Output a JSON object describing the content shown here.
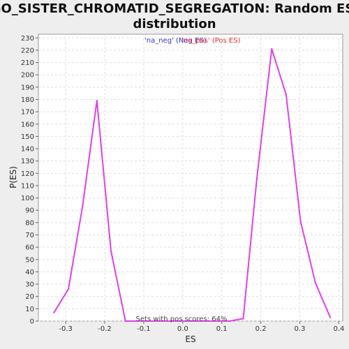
{
  "chart_data": {
    "type": "line",
    "title_line1": "GO_SISTER_CHROMATID_SEGREGATION: Random ES",
    "title_line2": "distribution",
    "xlabel": "ES",
    "ylabel": "P(ES)",
    "xlim": [
      -0.37,
      0.41
    ],
    "ylim": [
      0,
      233
    ],
    "xticks": [
      "-0.3",
      "-0.2",
      "-0.1",
      "0.0",
      "0.1",
      "0.2",
      "0.3",
      "0.4"
    ],
    "xtick_values": [
      -0.3,
      -0.2,
      -0.1,
      0.0,
      0.1,
      0.2,
      0.3,
      0.4
    ],
    "yticks": [
      0,
      10,
      20,
      30,
      40,
      50,
      60,
      70,
      80,
      90,
      100,
      110,
      120,
      130,
      140,
      150,
      160,
      170,
      180,
      190,
      200,
      210,
      220,
      230
    ],
    "grid": true,
    "legend": {
      "position": "top-center",
      "entries": [
        {
          "label": "'na_neg' (Neg ES)",
          "color": "#3333cc"
        },
        {
          "label": "'na_pos' (Pos ES)",
          "color": "#e03030"
        }
      ]
    },
    "series": [
      {
        "color": "#e040e8",
        "x": [
          -0.33,
          -0.293,
          -0.257,
          -0.22,
          -0.184,
          -0.147,
          0.12,
          0.155,
          0.19,
          0.228,
          0.265,
          0.302,
          0.34,
          0.378
        ],
        "y": [
          7,
          26,
          93,
          179,
          57,
          0,
          0,
          2,
          116,
          221,
          184,
          81,
          31,
          3
        ]
      }
    ],
    "annotation": "Sets with pos scores: 64%",
    "colors": {
      "line": "#e040e8",
      "background": "#eeeeee",
      "plot_background": "#ffffff",
      "grid": "#dddddd"
    }
  }
}
